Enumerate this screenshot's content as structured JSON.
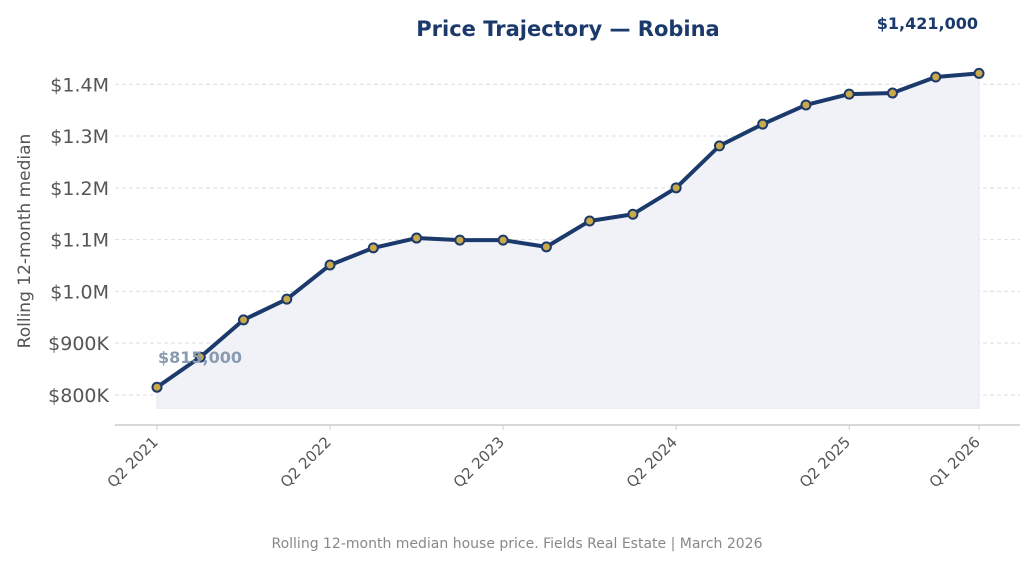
{
  "chart_data": {
    "type": "line",
    "title": "Price Trajectory — Robina",
    "ylabel": "Rolling 12-month median",
    "xlabel": "",
    "caption": "Rolling 12-month median house price. Fields Real Estate | March 2026",
    "x": [
      "Q2 2021",
      "Q3 2021",
      "Q4 2021",
      "Q1 2022",
      "Q2 2022",
      "Q3 2022",
      "Q4 2022",
      "Q1 2023",
      "Q2 2023",
      "Q3 2023",
      "Q4 2023",
      "Q1 2024",
      "Q2 2024",
      "Q3 2024",
      "Q4 2024",
      "Q1 2025",
      "Q2 2025",
      "Q3 2025",
      "Q4 2025",
      "Q1 2026"
    ],
    "values": [
      815000,
      873000,
      945000,
      985000,
      1051000,
      1084000,
      1103000,
      1099000,
      1099000,
      1086000,
      1136000,
      1149000,
      1200000,
      1281000,
      1323000,
      1360000,
      1381000,
      1383000,
      1414000,
      1421000
    ],
    "xticks": [
      "Q2 2021",
      "Q2 2022",
      "Q2 2023",
      "Q2 2024",
      "Q2 2025",
      "Q1 2026"
    ],
    "yticks": [
      {
        "value": 800000,
        "label": "$800K"
      },
      {
        "value": 900000,
        "label": "$900K"
      },
      {
        "value": 1000000,
        "label": "$1.0M"
      },
      {
        "value": 1100000,
        "label": "$1.1M"
      },
      {
        "value": 1200000,
        "label": "$1.2M"
      },
      {
        "value": 1300000,
        "label": "$1.3M"
      },
      {
        "value": 1400000,
        "label": "$1.4M"
      }
    ],
    "ylim": [
      742000,
      1470000
    ],
    "grid": true,
    "annotations": {
      "start": "$815,000",
      "end": "$1,421,000"
    },
    "colors": {
      "line": "#1b3a6b",
      "marker": "#c9a94a",
      "fill": "#f0f2f7",
      "start_label": "#8a9bb0",
      "title": "#1b3a6b"
    }
  }
}
